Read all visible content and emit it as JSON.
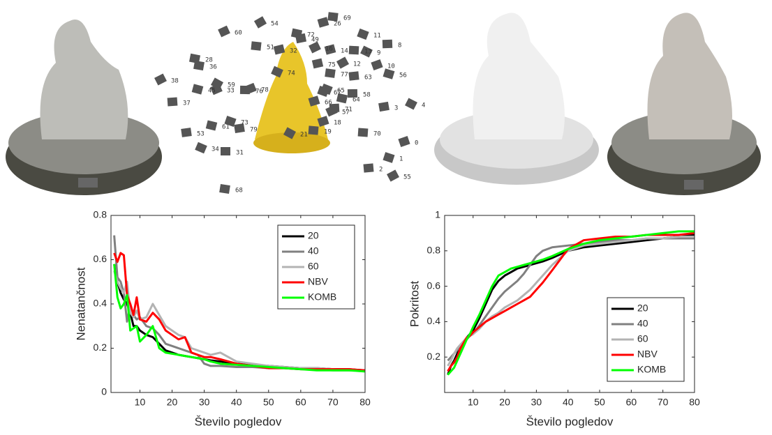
{
  "camera_view": {
    "labels": [
      "54",
      "69",
      "26",
      "11",
      "8",
      "60",
      "72",
      "49",
      "9",
      "13",
      "10",
      "56",
      "63",
      "12",
      "77",
      "14",
      "65",
      "58",
      "57",
      "64",
      "3",
      "4",
      "70",
      "0",
      "1",
      "2",
      "55",
      "68",
      "32",
      "34",
      "31",
      "33",
      "61",
      "79",
      "21",
      "19",
      "18",
      "73",
      "37",
      "38",
      "36",
      "75",
      "74",
      "76",
      "78",
      "45",
      "53",
      "59",
      "51",
      "66",
      "67",
      "71",
      "16",
      "28"
    ]
  },
  "chart_data": [
    {
      "type": "line",
      "x_label": "Število pogledov",
      "y_label": "Nenatančnost",
      "x": [
        2,
        3,
        4,
        5,
        6,
        7,
        8,
        9,
        10,
        12,
        14,
        16,
        18,
        20,
        22,
        24,
        26,
        28,
        30,
        32,
        35,
        40,
        45,
        50,
        55,
        60,
        65,
        70,
        75,
        80
      ],
      "xlim": [
        1,
        80
      ],
      "xticks": [
        10,
        20,
        30,
        40,
        50,
        60,
        70,
        80
      ],
      "ylim": [
        0,
        0.8
      ],
      "yticks": [
        0,
        0.2,
        0.4,
        0.6,
        0.8
      ],
      "legend": "top-right",
      "series": [
        {
          "name": "20",
          "color": "#000000",
          "values": [
            0.58,
            0.5,
            0.45,
            0.42,
            0.4,
            0.36,
            0.3,
            0.3,
            0.28,
            0.26,
            0.25,
            0.22,
            0.19,
            0.18,
            0.17,
            0.165,
            0.16,
            0.155,
            0.15,
            0.145,
            0.14,
            0.13,
            0.125,
            0.12,
            0.115,
            0.11,
            0.11,
            0.105,
            0.105,
            0.1
          ]
        },
        {
          "name": "40",
          "color": "#808080",
          "values": [
            0.71,
            0.52,
            0.5,
            0.45,
            0.32,
            0.4,
            0.35,
            0.33,
            0.34,
            0.3,
            0.29,
            0.26,
            0.22,
            0.21,
            0.2,
            0.19,
            0.18,
            0.17,
            0.13,
            0.12,
            0.12,
            0.115,
            0.115,
            0.11,
            0.11,
            0.105,
            0.105,
            0.1,
            0.1,
            0.1
          ]
        },
        {
          "name": "60",
          "color": "#b3b3b3",
          "values": [
            0.55,
            0.5,
            0.47,
            0.45,
            0.5,
            0.36,
            0.34,
            0.37,
            0.33,
            0.34,
            0.4,
            0.35,
            0.3,
            0.28,
            0.26,
            0.25,
            0.2,
            0.19,
            0.18,
            0.17,
            0.18,
            0.14,
            0.13,
            0.12,
            0.115,
            0.11,
            0.11,
            0.105,
            0.1,
            0.1
          ]
        },
        {
          "name": "NBV",
          "color": "#ff0000",
          "values": [
            0.63,
            0.59,
            0.63,
            0.62,
            0.44,
            0.4,
            0.35,
            0.43,
            0.33,
            0.32,
            0.36,
            0.33,
            0.28,
            0.26,
            0.24,
            0.25,
            0.18,
            0.17,
            0.16,
            0.16,
            0.15,
            0.13,
            0.12,
            0.11,
            0.11,
            0.105,
            0.105,
            0.105,
            0.105,
            0.1
          ]
        },
        {
          "name": "KOMB",
          "color": "#00ff00",
          "values": [
            0.58,
            0.43,
            0.38,
            0.4,
            0.44,
            0.28,
            0.29,
            0.3,
            0.23,
            0.26,
            0.3,
            0.2,
            0.18,
            0.175,
            0.17,
            0.165,
            0.16,
            0.155,
            0.15,
            0.14,
            0.13,
            0.125,
            0.12,
            0.115,
            0.11,
            0.105,
            0.1,
            0.1,
            0.1,
            0.095
          ]
        }
      ]
    },
    {
      "type": "line",
      "x_label": "Število pogledov",
      "y_label": "Pokritost",
      "x": [
        2,
        3,
        4,
        5,
        6,
        7,
        8,
        9,
        10,
        12,
        14,
        16,
        18,
        20,
        22,
        24,
        26,
        28,
        30,
        32,
        35,
        40,
        45,
        50,
        55,
        60,
        65,
        70,
        75,
        80
      ],
      "xlim": [
        1,
        80
      ],
      "xticks": [
        10,
        20,
        30,
        40,
        50,
        60,
        70,
        80
      ],
      "ylim": [
        0,
        1
      ],
      "yticks": [
        0.2,
        0.4,
        0.6,
        0.8,
        1
      ],
      "legend": "bottom-right",
      "series": [
        {
          "name": "20",
          "color": "#000000",
          "values": [
            0.1,
            0.15,
            0.18,
            0.22,
            0.25,
            0.28,
            0.31,
            0.33,
            0.35,
            0.42,
            0.5,
            0.58,
            0.63,
            0.66,
            0.68,
            0.7,
            0.71,
            0.72,
            0.73,
            0.74,
            0.76,
            0.8,
            0.82,
            0.83,
            0.84,
            0.85,
            0.86,
            0.87,
            0.88,
            0.89
          ]
        },
        {
          "name": "40",
          "color": "#808080",
          "values": [
            0.18,
            0.2,
            0.22,
            0.24,
            0.26,
            0.28,
            0.3,
            0.32,
            0.33,
            0.38,
            0.43,
            0.48,
            0.53,
            0.57,
            0.6,
            0.63,
            0.67,
            0.72,
            0.77,
            0.8,
            0.82,
            0.83,
            0.84,
            0.85,
            0.86,
            0.86,
            0.87,
            0.87,
            0.87,
            0.87
          ]
        },
        {
          "name": "60",
          "color": "#b3b3b3",
          "values": [
            0.15,
            0.18,
            0.22,
            0.25,
            0.27,
            0.29,
            0.31,
            0.32,
            0.33,
            0.36,
            0.4,
            0.43,
            0.45,
            0.48,
            0.5,
            0.52,
            0.55,
            0.58,
            0.62,
            0.66,
            0.72,
            0.8,
            0.83,
            0.84,
            0.85,
            0.86,
            0.87,
            0.87,
            0.88,
            0.88
          ]
        },
        {
          "name": "NBV",
          "color": "#ff0000",
          "values": [
            0.12,
            0.15,
            0.17,
            0.2,
            0.25,
            0.28,
            0.31,
            0.32,
            0.34,
            0.37,
            0.4,
            0.42,
            0.44,
            0.46,
            0.48,
            0.5,
            0.52,
            0.54,
            0.58,
            0.62,
            0.69,
            0.81,
            0.86,
            0.87,
            0.88,
            0.88,
            0.89,
            0.89,
            0.89,
            0.9
          ]
        },
        {
          "name": "KOMB",
          "color": "#00ff00",
          "values": [
            0.1,
            0.12,
            0.14,
            0.18,
            0.22,
            0.26,
            0.3,
            0.33,
            0.37,
            0.44,
            0.52,
            0.6,
            0.66,
            0.68,
            0.7,
            0.71,
            0.72,
            0.73,
            0.74,
            0.75,
            0.77,
            0.81,
            0.84,
            0.86,
            0.87,
            0.88,
            0.89,
            0.9,
            0.91,
            0.91
          ]
        }
      ]
    }
  ]
}
